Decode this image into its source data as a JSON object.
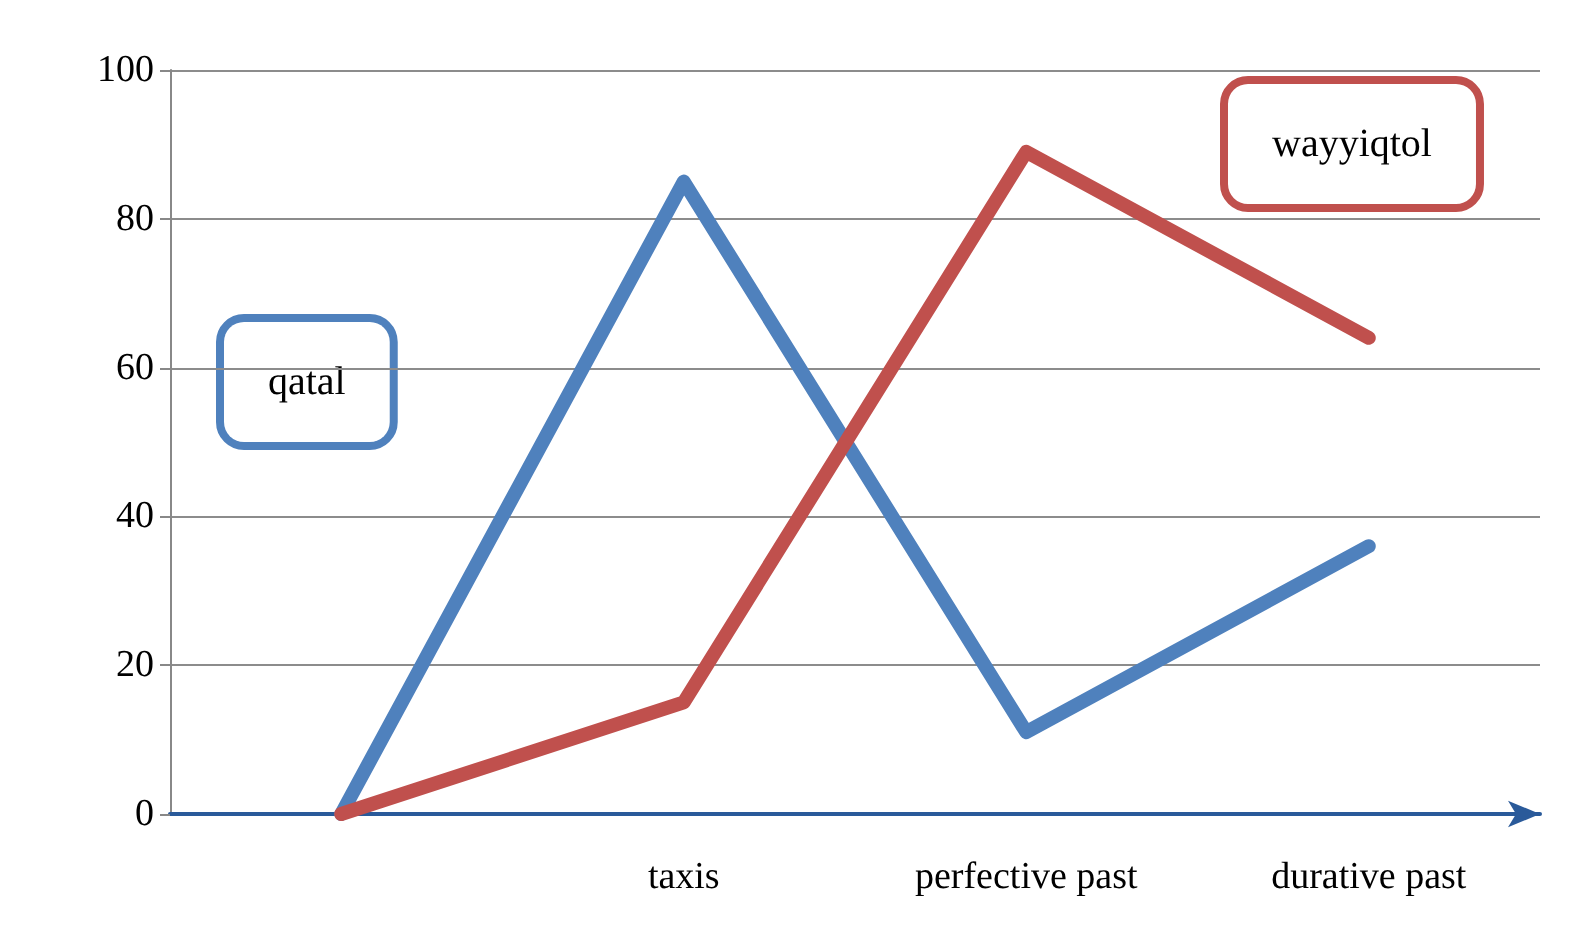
{
  "chart_data": {
    "type": "line",
    "categories": [
      null,
      "taxis",
      "perfective past",
      "durative past"
    ],
    "series": [
      {
        "name": "qatal",
        "color": "#4f81bd",
        "values": [
          0,
          85,
          11,
          36
        ]
      },
      {
        "name": "wayyiqtol",
        "color": "#c0504d",
        "values": [
          0,
          15,
          89,
          64
        ]
      }
    ],
    "ylim": [
      0,
      100
    ],
    "yticks": [
      0,
      20,
      40,
      60,
      80,
      100
    ],
    "grid": "y",
    "marker": "none",
    "line_style": "solid",
    "legend": false
  }
}
